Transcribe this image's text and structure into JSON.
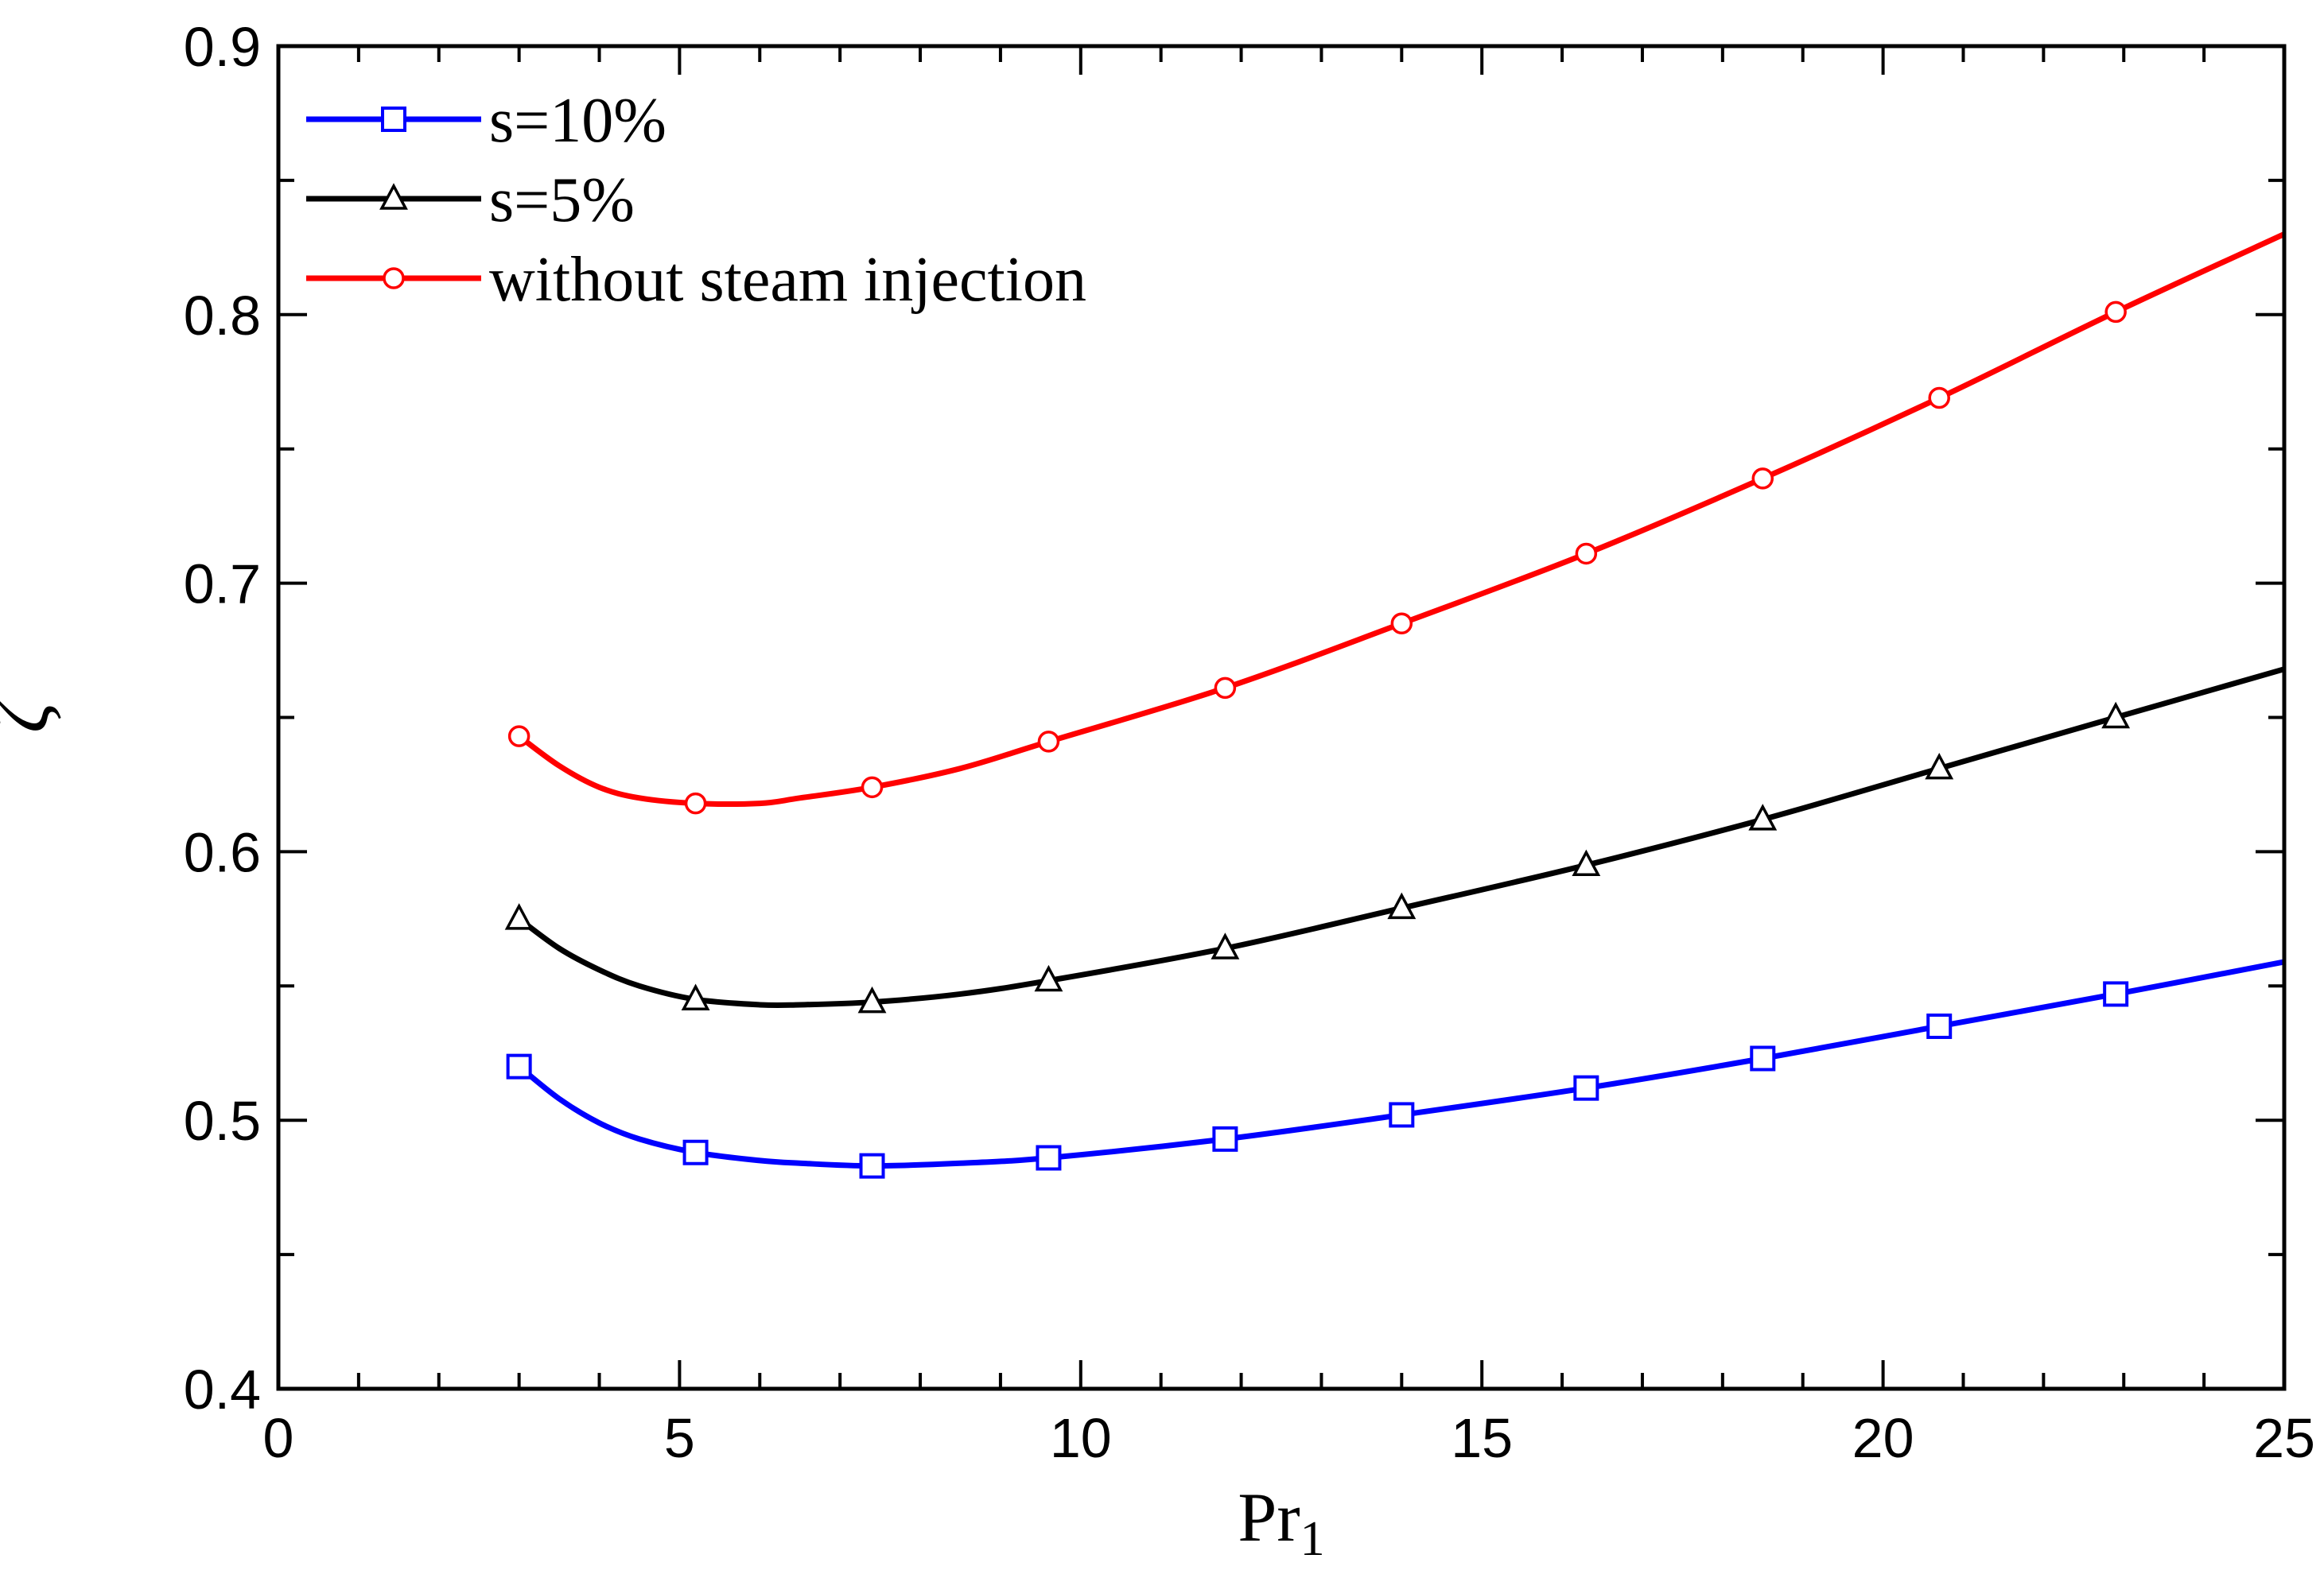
{
  "chart_data": {
    "type": "line",
    "title": "",
    "xlabel": "Pr",
    "xlabel_subscript": "1",
    "ylabel": "ζ",
    "xlim": [
      0,
      25
    ],
    "ylim": [
      0.4,
      0.9
    ],
    "x_major_ticks": [
      0,
      5,
      10,
      15,
      20,
      25
    ],
    "x_tick_labels": [
      "0",
      "5",
      "10",
      "15",
      "20",
      "25"
    ],
    "y_major_ticks": [
      0.4,
      0.5,
      0.6,
      0.7,
      0.8,
      0.9
    ],
    "y_tick_labels": [
      "0.4",
      "0.5",
      "0.6",
      "0.7",
      "0.8",
      "0.9"
    ],
    "x_minor_step": 1,
    "y_minor_step": 0.05,
    "grid": false,
    "legend_position": "top-left",
    "series": [
      {
        "name": "s=10%",
        "color": "#0000ff",
        "marker": "square",
        "x": [
          3.0,
          5.2,
          7.4,
          9.6,
          11.8,
          14.0,
          16.3,
          18.5,
          20.7,
          22.9
        ],
        "y": [
          0.52,
          0.488,
          0.483,
          0.486,
          0.493,
          0.502,
          0.512,
          0.523,
          0.535,
          0.547
        ],
        "curve_x": [
          3.0,
          3.5,
          4.0,
          4.5,
          5.2,
          6.0,
          6.5,
          7.4,
          8.5,
          9.6,
          11.8,
          14.0,
          16.3,
          18.5,
          20.7,
          22.9,
          25.0
        ],
        "curve_y": [
          0.52,
          0.508,
          0.499,
          0.493,
          0.488,
          0.485,
          0.484,
          0.483,
          0.484,
          0.486,
          0.493,
          0.502,
          0.512,
          0.523,
          0.535,
          0.547,
          0.559
        ]
      },
      {
        "name": "s=5%",
        "color": "#000000",
        "marker": "triangle",
        "x": [
          3.0,
          5.2,
          7.4,
          9.6,
          11.8,
          14.0,
          16.3,
          18.5,
          20.7,
          22.9
        ],
        "y": [
          0.575,
          0.545,
          0.544,
          0.552,
          0.564,
          0.579,
          0.595,
          0.612,
          0.631,
          0.65
        ],
        "curve_x": [
          3.0,
          3.5,
          4.0,
          4.5,
          5.2,
          6.0,
          6.5,
          7.4,
          8.5,
          9.6,
          11.8,
          14.0,
          16.3,
          18.5,
          20.7,
          22.9,
          25.0
        ],
        "curve_y": [
          0.575,
          0.564,
          0.556,
          0.55,
          0.545,
          0.543,
          0.543,
          0.544,
          0.547,
          0.552,
          0.564,
          0.579,
          0.595,
          0.612,
          0.631,
          0.65,
          0.668
        ]
      },
      {
        "name": "without steam injection",
        "color": "#ff0000",
        "marker": "circle",
        "x": [
          3.0,
          5.2,
          7.4,
          9.6,
          11.8,
          14.0,
          16.3,
          18.5,
          20.7,
          22.9
        ],
        "y": [
          0.643,
          0.618,
          0.624,
          0.641,
          0.661,
          0.685,
          0.711,
          0.739,
          0.769,
          0.801
        ],
        "curve_x": [
          3.0,
          3.5,
          4.0,
          4.5,
          5.2,
          6.0,
          6.5,
          7.4,
          8.5,
          9.6,
          11.8,
          14.0,
          16.3,
          18.5,
          20.7,
          22.9,
          25.0
        ],
        "curve_y": [
          0.643,
          0.632,
          0.624,
          0.62,
          0.618,
          0.618,
          0.62,
          0.624,
          0.631,
          0.641,
          0.661,
          0.685,
          0.711,
          0.739,
          0.769,
          0.801,
          0.83
        ]
      }
    ]
  }
}
